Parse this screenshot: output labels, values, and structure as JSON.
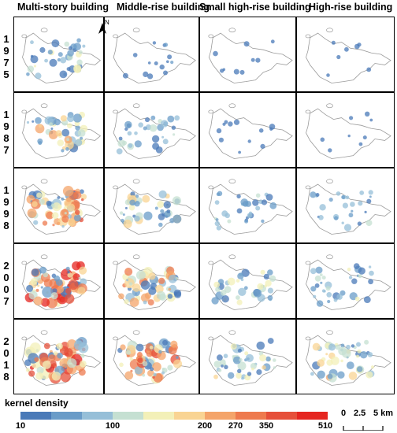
{
  "columns": [
    "Multi-story building",
    "Middle-rise building",
    "Small high-rise building",
    "High-rise building"
  ],
  "years": [
    [
      "1",
      "9",
      "7",
      "5"
    ],
    [
      "1",
      "9",
      "8",
      "7"
    ],
    [
      "1",
      "9",
      "9",
      "8"
    ],
    [
      "2",
      "0",
      "0",
      "7"
    ],
    [
      "2",
      "0",
      "1",
      "8"
    ]
  ],
  "map": {
    "north_label": "N",
    "intensity": [
      [
        0.45,
        0.12,
        0.04,
        0.02
      ],
      [
        0.6,
        0.35,
        0.08,
        0.03
      ],
      [
        0.85,
        0.55,
        0.35,
        0.3
      ],
      [
        0.95,
        0.75,
        0.45,
        0.4
      ],
      [
        0.95,
        0.85,
        0.55,
        0.6
      ]
    ]
  },
  "legend": {
    "title": "kernel density",
    "labels": [
      "10",
      "100",
      "200",
      "270",
      "350",
      "510"
    ],
    "colors": [
      "#4a7ab8",
      "#6a9cc8",
      "#96bfd8",
      "#c5e0d2",
      "#f3f0b8",
      "#f9d493",
      "#f4a46a",
      "#ee7a4e",
      "#e6503a",
      "#e52620"
    ]
  },
  "scale": {
    "labels": [
      "0",
      "2.5",
      "5 km"
    ]
  }
}
